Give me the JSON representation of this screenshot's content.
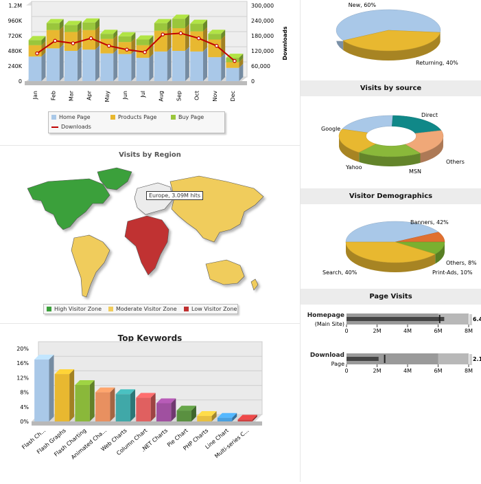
{
  "colors": {
    "home": "#a9c8e8",
    "products": "#e8b830",
    "buy": "#9ac63c",
    "downloads": "#c00000",
    "high": "#3aa03a",
    "moderate": "#f0cc5c",
    "low": "#c03030",
    "europe": "#ececec"
  },
  "top_left": {
    "chart_data": {
      "type": "bar",
      "stacked": true,
      "categories": [
        "Jan",
        "Feb",
        "Mar",
        "Apr",
        "May",
        "Jun",
        "Jul",
        "Aug",
        "Sep",
        "Oct",
        "Nov",
        "Dec"
      ],
      "series": [
        {
          "name": "Home Page",
          "values": [
            390000,
            520000,
            480000,
            500000,
            440000,
            430000,
            370000,
            470000,
            480000,
            470000,
            380000,
            210000
          ]
        },
        {
          "name": "Products Page",
          "values": [
            180000,
            290000,
            300000,
            310000,
            230000,
            190000,
            200000,
            330000,
            360000,
            320000,
            280000,
            90000
          ]
        },
        {
          "name": "Buy Page",
          "values": [
            80000,
            110000,
            110000,
            120000,
            80000,
            90000,
            90000,
            120000,
            150000,
            120000,
            90000,
            70000
          ]
        }
      ],
      "line_series": {
        "name": "Downloads",
        "values": [
          110000,
          160000,
          150000,
          170000,
          140000,
          125000,
          115000,
          185000,
          190000,
          170000,
          140000,
          80000
        ]
      },
      "y_left_ticks": [
        "0",
        "240K",
        "480K",
        "720K",
        "960K",
        "1.2M"
      ],
      "y_left_max": 1200000,
      "y_right_ticks": [
        "0",
        "60,000",
        "120,000",
        "180,000",
        "240,000",
        "300,000"
      ],
      "y_right_max": 300000,
      "y_right_label": "Downloads",
      "legend_position": "bottom"
    }
  },
  "region": {
    "chart_data": {
      "type": "map",
      "title": "Visits by Region",
      "regions": [
        {
          "name": "North America",
          "zone": "High Visitor Zone"
        },
        {
          "name": "South America",
          "zone": "Moderate Visitor Zone"
        },
        {
          "name": "Europe",
          "zone": "Not shaded"
        },
        {
          "name": "Africa",
          "zone": "Low Visitor Zone"
        },
        {
          "name": "Asia",
          "zone": "Moderate Visitor Zone"
        },
        {
          "name": "Australia",
          "zone": "Moderate Visitor Zone"
        },
        {
          "name": "Greenland",
          "zone": "High Visitor Zone"
        }
      ],
      "tooltip": "Europe, 3.09M hits",
      "legend": [
        "High Visitor Zone",
        "Moderate Visitor Zone",
        "Low Visitor Zone"
      ]
    }
  },
  "keywords": {
    "chart_data": {
      "type": "bar",
      "title": "Top Keywords",
      "categories": [
        "Flash Ch...",
        "Flash Graphs",
        "Flash Charting",
        "Animated Cha...",
        "Web Charts",
        "Column Chart",
        ".NET Charts",
        "Pie Chart",
        "PHP Charts",
        "Line Chart",
        "Multi-series C..."
      ],
      "values": [
        17,
        13,
        10,
        8,
        7.5,
        6.5,
        5,
        3,
        1.5,
        1,
        0.5
      ],
      "colors": [
        "#a9c8e8",
        "#e8b830",
        "#8ab83a",
        "#e89060",
        "#40a8a8",
        "#e06060",
        "#a050a0",
        "#5a9040",
        "#e8c040",
        "#4aa0e0",
        "#d04040"
      ],
      "y_ticks": [
        "0%",
        "4%",
        "8%",
        "12%",
        "16%",
        "20%"
      ],
      "ylim": [
        0,
        20
      ]
    }
  },
  "visit_type": {
    "chart_data": {
      "type": "pie",
      "slices": [
        {
          "label": "New, 60%",
          "value": 60,
          "color": "#a9c8e8"
        },
        {
          "label": "Returning, 40%",
          "value": 40,
          "color": "#e8b830"
        }
      ]
    }
  },
  "sources": {
    "title": "Visits by source",
    "chart_data": {
      "type": "pie",
      "donut": true,
      "slices": [
        {
          "label": "Direct",
          "color": "#a9c8e8"
        },
        {
          "label": "Others",
          "color": "#108888"
        },
        {
          "label": "MSN",
          "color": "#f0a878"
        },
        {
          "label": "Yahoo",
          "color": "#8ab83a"
        },
        {
          "label": "Google",
          "color": "#e8b830"
        }
      ]
    }
  },
  "demographics": {
    "title": "Visitor Demographics",
    "chart_data": {
      "type": "pie",
      "slices": [
        {
          "label": "Banners, 42%",
          "value": 42,
          "color": "#a9c8e8"
        },
        {
          "label": "Others, 8%",
          "value": 8,
          "color": "#e07030"
        },
        {
          "label": "Print-Ads, 10%",
          "value": 10,
          "color": "#7ab030"
        },
        {
          "label": "Search, 40%",
          "value": 40,
          "color": "#e8b830"
        }
      ]
    }
  },
  "page_visits": {
    "title": "Page Visits",
    "chart_data": {
      "type": "bullet",
      "axis_ticks": [
        "0",
        "2M",
        "4M",
        "6M",
        "8M"
      ],
      "axis_max": 8,
      "items": [
        {
          "label": "Homepage",
          "sublabel": "(Main Site)",
          "value": 6.4,
          "target": 6.1,
          "value_label": "6.4"
        },
        {
          "label": "Download",
          "sublabel": "Page",
          "value": 2.1,
          "target": 2.5,
          "value_label": "2.1"
        }
      ]
    }
  }
}
